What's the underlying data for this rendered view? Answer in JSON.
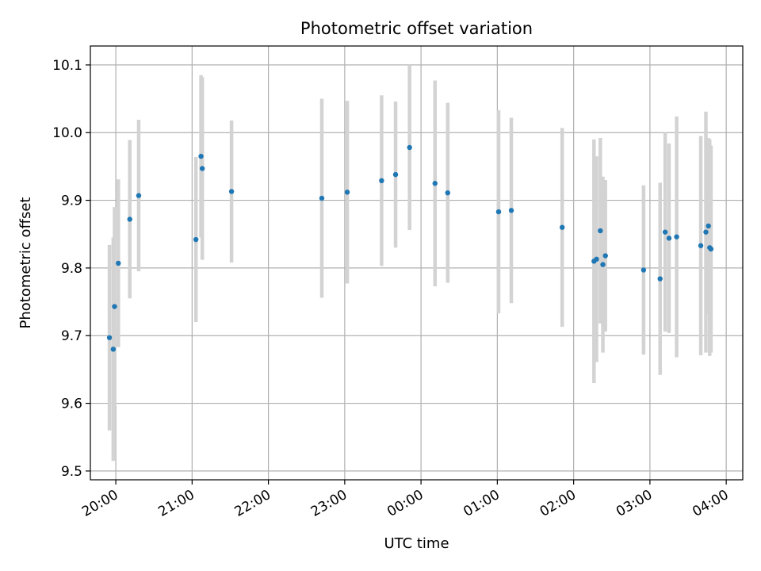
{
  "chart_data": {
    "type": "scatter",
    "title": "Photometric offset variation",
    "xlabel": "UTC time",
    "ylabel": "Photometric offset",
    "grid": true,
    "x_type": "time",
    "xlim": [
      "19:40",
      "04:13"
    ],
    "ylim": [
      9.487,
      10.128
    ],
    "x_ticks": [
      "20:00",
      "21:00",
      "22:00",
      "23:00",
      "00:00",
      "01:00",
      "02:00",
      "03:00",
      "04:00"
    ],
    "y_ticks": [
      "9.5",
      "9.6",
      "9.7",
      "9.8",
      "9.9",
      "10.0",
      "10.1"
    ],
    "colors": {
      "point": "#1f77b4",
      "errorbar": "#d3d3d3",
      "grid": "#b0b0b0"
    },
    "series": [
      {
        "points": [
          {
            "x": "19:55",
            "y": 9.697,
            "err": 0.137
          },
          {
            "x": "19:58",
            "y": 9.68,
            "err": 0.165
          },
          {
            "x": "19:59",
            "y": 9.743,
            "err": 0.147
          },
          {
            "x": "20:02",
            "y": 9.807,
            "err": 0.124
          },
          {
            "x": "20:11",
            "y": 9.872,
            "err": 0.117
          },
          {
            "x": "20:18",
            "y": 9.907,
            "err": 0.112
          },
          {
            "x": "21:03",
            "y": 9.842,
            "err": 0.122
          },
          {
            "x": "21:07",
            "y": 9.965,
            "err": 0.12
          },
          {
            "x": "21:08",
            "y": 9.947,
            "err": 0.135
          },
          {
            "x": "21:31",
            "y": 9.913,
            "err": 0.105
          },
          {
            "x": "22:42",
            "y": 9.903,
            "err": 0.147
          },
          {
            "x": "23:02",
            "y": 9.912,
            "err": 0.135
          },
          {
            "x": "23:29",
            "y": 9.929,
            "err": 0.126
          },
          {
            "x": "23:40",
            "y": 9.938,
            "err": 0.108
          },
          {
            "x": "23:51",
            "y": 9.978,
            "err": 0.122
          },
          {
            "x": "00:11",
            "y": 9.925,
            "err": 0.152
          },
          {
            "x": "00:21",
            "y": 9.911,
            "err": 0.133
          },
          {
            "x": "01:01",
            "y": 9.883,
            "err": 0.15
          },
          {
            "x": "01:11",
            "y": 9.885,
            "err": 0.137
          },
          {
            "x": "01:51",
            "y": 9.86,
            "err": 0.147
          },
          {
            "x": "02:16",
            "y": 9.81,
            "err": 0.18
          },
          {
            "x": "02:18",
            "y": 9.813,
            "err": 0.152
          },
          {
            "x": "02:21",
            "y": 9.855,
            "err": 0.137
          },
          {
            "x": "02:23",
            "y": 9.805,
            "err": 0.13
          },
          {
            "x": "02:25",
            "y": 9.818,
            "err": 0.112
          },
          {
            "x": "02:55",
            "y": 9.797,
            "err": 0.125
          },
          {
            "x": "03:08",
            "y": 9.784,
            "err": 0.142
          },
          {
            "x": "03:12",
            "y": 9.853,
            "err": 0.147
          },
          {
            "x": "03:15",
            "y": 9.844,
            "err": 0.14
          },
          {
            "x": "03:21",
            "y": 9.846,
            "err": 0.178
          },
          {
            "x": "03:40",
            "y": 9.833,
            "err": 0.162
          },
          {
            "x": "03:44",
            "y": 9.853,
            "err": 0.178
          },
          {
            "x": "03:46",
            "y": 9.862,
            "err": 0.13
          },
          {
            "x": "03:47",
            "y": 9.83,
            "err": 0.16
          },
          {
            "x": "03:48",
            "y": 9.828,
            "err": 0.153
          }
        ]
      }
    ]
  }
}
